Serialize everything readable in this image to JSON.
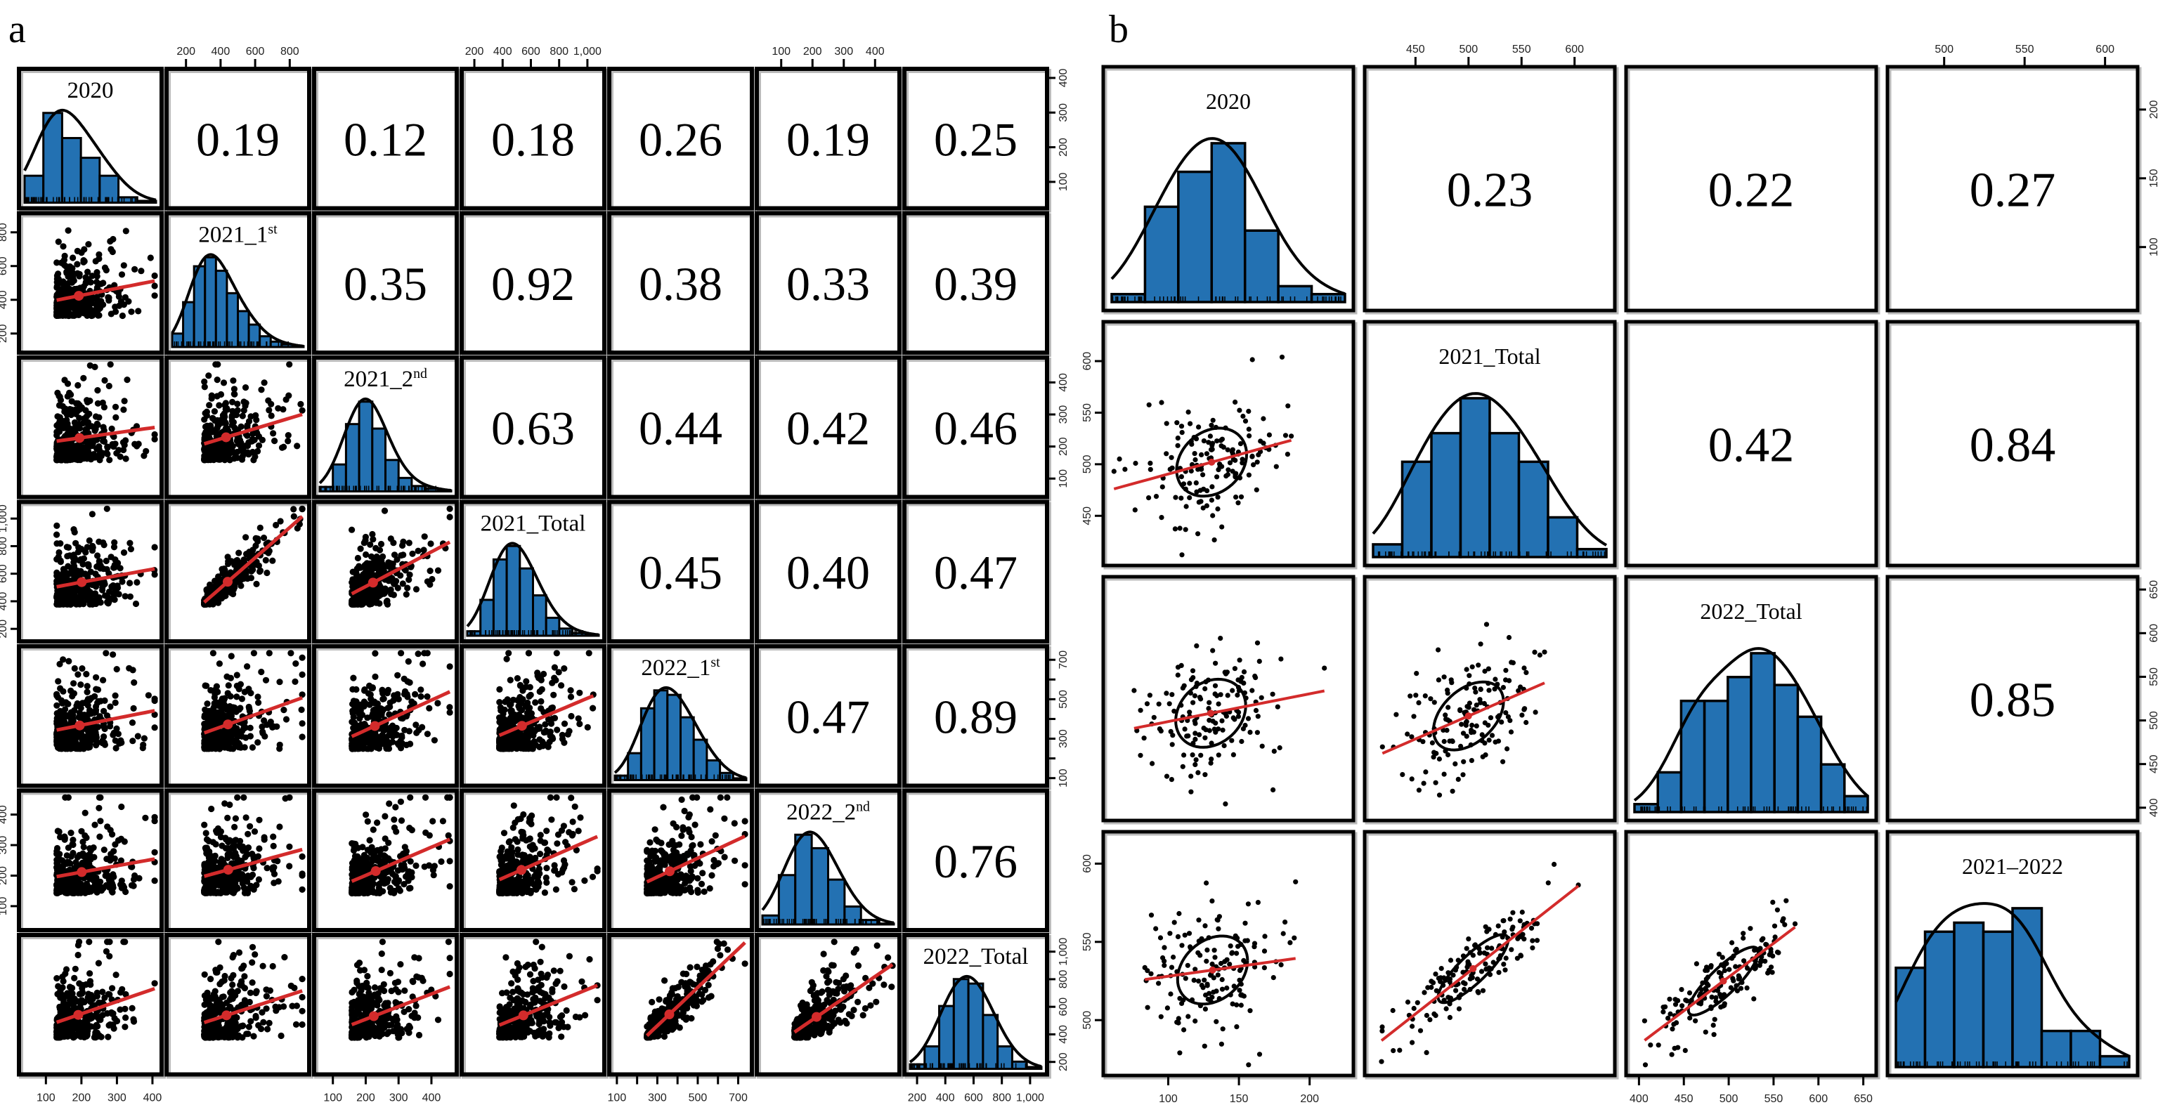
{
  "chart_data": [
    {
      "type": "scatter-matrix",
      "panel_label": "a",
      "colors": {
        "histogram": "#2371b2",
        "fit_line": "#d32b2b",
        "points": "#000000"
      },
      "variables": [
        {
          "label": "2020",
          "sup": "",
          "range": [
            40,
            410
          ],
          "ticks": [
            100,
            200,
            300,
            400
          ],
          "tick_labels": [
            "100",
            "200",
            "300",
            "400"
          ],
          "histogram": [
            0.3,
            1.0,
            0.72,
            0.5,
            0.3,
            0.06,
            0.02
          ]
        },
        {
          "label": "2021_1",
          "sup": "st",
          "range": [
            120,
            880
          ],
          "ticks": [
            200,
            400,
            600,
            800
          ],
          "tick_labels": [
            "200",
            "400",
            "600",
            "800"
          ],
          "histogram": [
            0.15,
            0.5,
            0.9,
            1.0,
            0.85,
            0.6,
            0.4,
            0.25,
            0.12,
            0.06,
            0.03,
            0.01
          ]
        },
        {
          "label": "2021_2",
          "sup": "nd",
          "range": [
            60,
            460
          ],
          "ticks": [
            100,
            200,
            300,
            400
          ],
          "tick_labels": [
            "100",
            "200",
            "300",
            "400"
          ],
          "histogram": [
            0.05,
            0.3,
            0.75,
            1.0,
            0.7,
            0.35,
            0.15,
            0.06,
            0.03,
            0.01
          ]
        },
        {
          "label": "2021_Total",
          "sup": "",
          "range": [
            150,
            1080
          ],
          "ticks": [
            200,
            400,
            600,
            800,
            1000
          ],
          "tick_labels": [
            "200",
            "400",
            "600",
            "800",
            "1,000"
          ],
          "histogram": [
            0.05,
            0.4,
            0.85,
            1.0,
            0.75,
            0.45,
            0.2,
            0.08,
            0.03,
            0.01
          ]
        },
        {
          "label": "2022_1",
          "sup": "st",
          "range": [
            90,
            740
          ],
          "ticks": [
            100,
            200,
            300,
            400,
            500,
            600,
            700
          ],
          "tick_labels": [
            "100",
            "",
            "300",
            "",
            "500",
            "",
            "700"
          ],
          "histogram": [
            0.05,
            0.3,
            0.8,
            1.0,
            0.95,
            0.7,
            0.45,
            0.22,
            0.08,
            0.02
          ]
        },
        {
          "label": "2022_2",
          "sup": "nd",
          "range": [
            40,
            460
          ],
          "ticks": [
            100,
            200,
            300,
            400
          ],
          "tick_labels": [
            "100",
            "200",
            "300",
            "400"
          ],
          "histogram": [
            0.1,
            0.55,
            1.0,
            0.85,
            0.5,
            0.2,
            0.05,
            0.01
          ]
        },
        {
          "label": "2022_Total",
          "sup": "",
          "range": [
            150,
            1080
          ],
          "ticks": [
            200,
            400,
            600,
            800,
            1000
          ],
          "tick_labels": [
            "200",
            "400",
            "600",
            "800",
            "1,000"
          ],
          "histogram": [
            0.05,
            0.25,
            0.7,
            1.0,
            0.95,
            0.6,
            0.25,
            0.08,
            0.02
          ]
        }
      ],
      "correlations": [
        [
          "0.19",
          "0.12",
          "0.18",
          "0.26",
          "0.19",
          "0.25"
        ],
        [
          "0.35",
          "0.92",
          "0.38",
          "0.33",
          "0.39"
        ],
        [
          "0.63",
          "0.44",
          "0.42",
          "0.46"
        ],
        [
          "0.45",
          "0.40",
          "0.47"
        ],
        [
          "0.47",
          "0.89"
        ],
        [
          "0.76"
        ]
      ]
    },
    {
      "type": "scatter-matrix",
      "panel_label": "b",
      "colors": {
        "histogram": "#2371b2",
        "fit_line": "#d32b2b",
        "points": "#000000"
      },
      "variables": [
        {
          "label": "2020",
          "sup": "",
          "range": [
            60,
            225
          ],
          "ticks": [
            100,
            150,
            200
          ],
          "tick_labels": [
            "100",
            "150",
            "200"
          ],
          "histogram": [
            0.05,
            0.6,
            0.82,
            1.0,
            0.45,
            0.1,
            0.05
          ]
        },
        {
          "label": "2021_Total",
          "sup": "",
          "range": [
            410,
            630
          ],
          "ticks": [
            450,
            500,
            550,
            600
          ],
          "tick_labels": [
            "450",
            "500",
            "550",
            "600"
          ],
          "histogram": [
            0.08,
            0.6,
            0.78,
            1.0,
            0.78,
            0.6,
            0.25,
            0.05
          ]
        },
        {
          "label": "2022_Total",
          "sup": "",
          "range": [
            395,
            655
          ],
          "ticks": [
            400,
            450,
            500,
            550,
            600,
            650
          ],
          "tick_labels": [
            "400",
            "450",
            "500",
            "550",
            "600",
            "650"
          ],
          "histogram": [
            0.05,
            0.25,
            0.7,
            0.7,
            0.85,
            1.0,
            0.8,
            0.6,
            0.3,
            0.1
          ]
        },
        {
          "label": "2021–2022",
          "sup": "",
          "range": [
            470,
            615
          ],
          "ticks": [
            500,
            550,
            600
          ],
          "tick_labels": [
            "500",
            "550",
            "600"
          ],
          "histogram": [
            0.55,
            0.75,
            0.8,
            0.75,
            0.88,
            0.2,
            0.2,
            0.06
          ]
        }
      ],
      "correlations": [
        [
          "0.23",
          "0.22",
          "0.27"
        ],
        [
          "0.42",
          "0.84"
        ],
        [
          "0.85"
        ]
      ]
    }
  ]
}
